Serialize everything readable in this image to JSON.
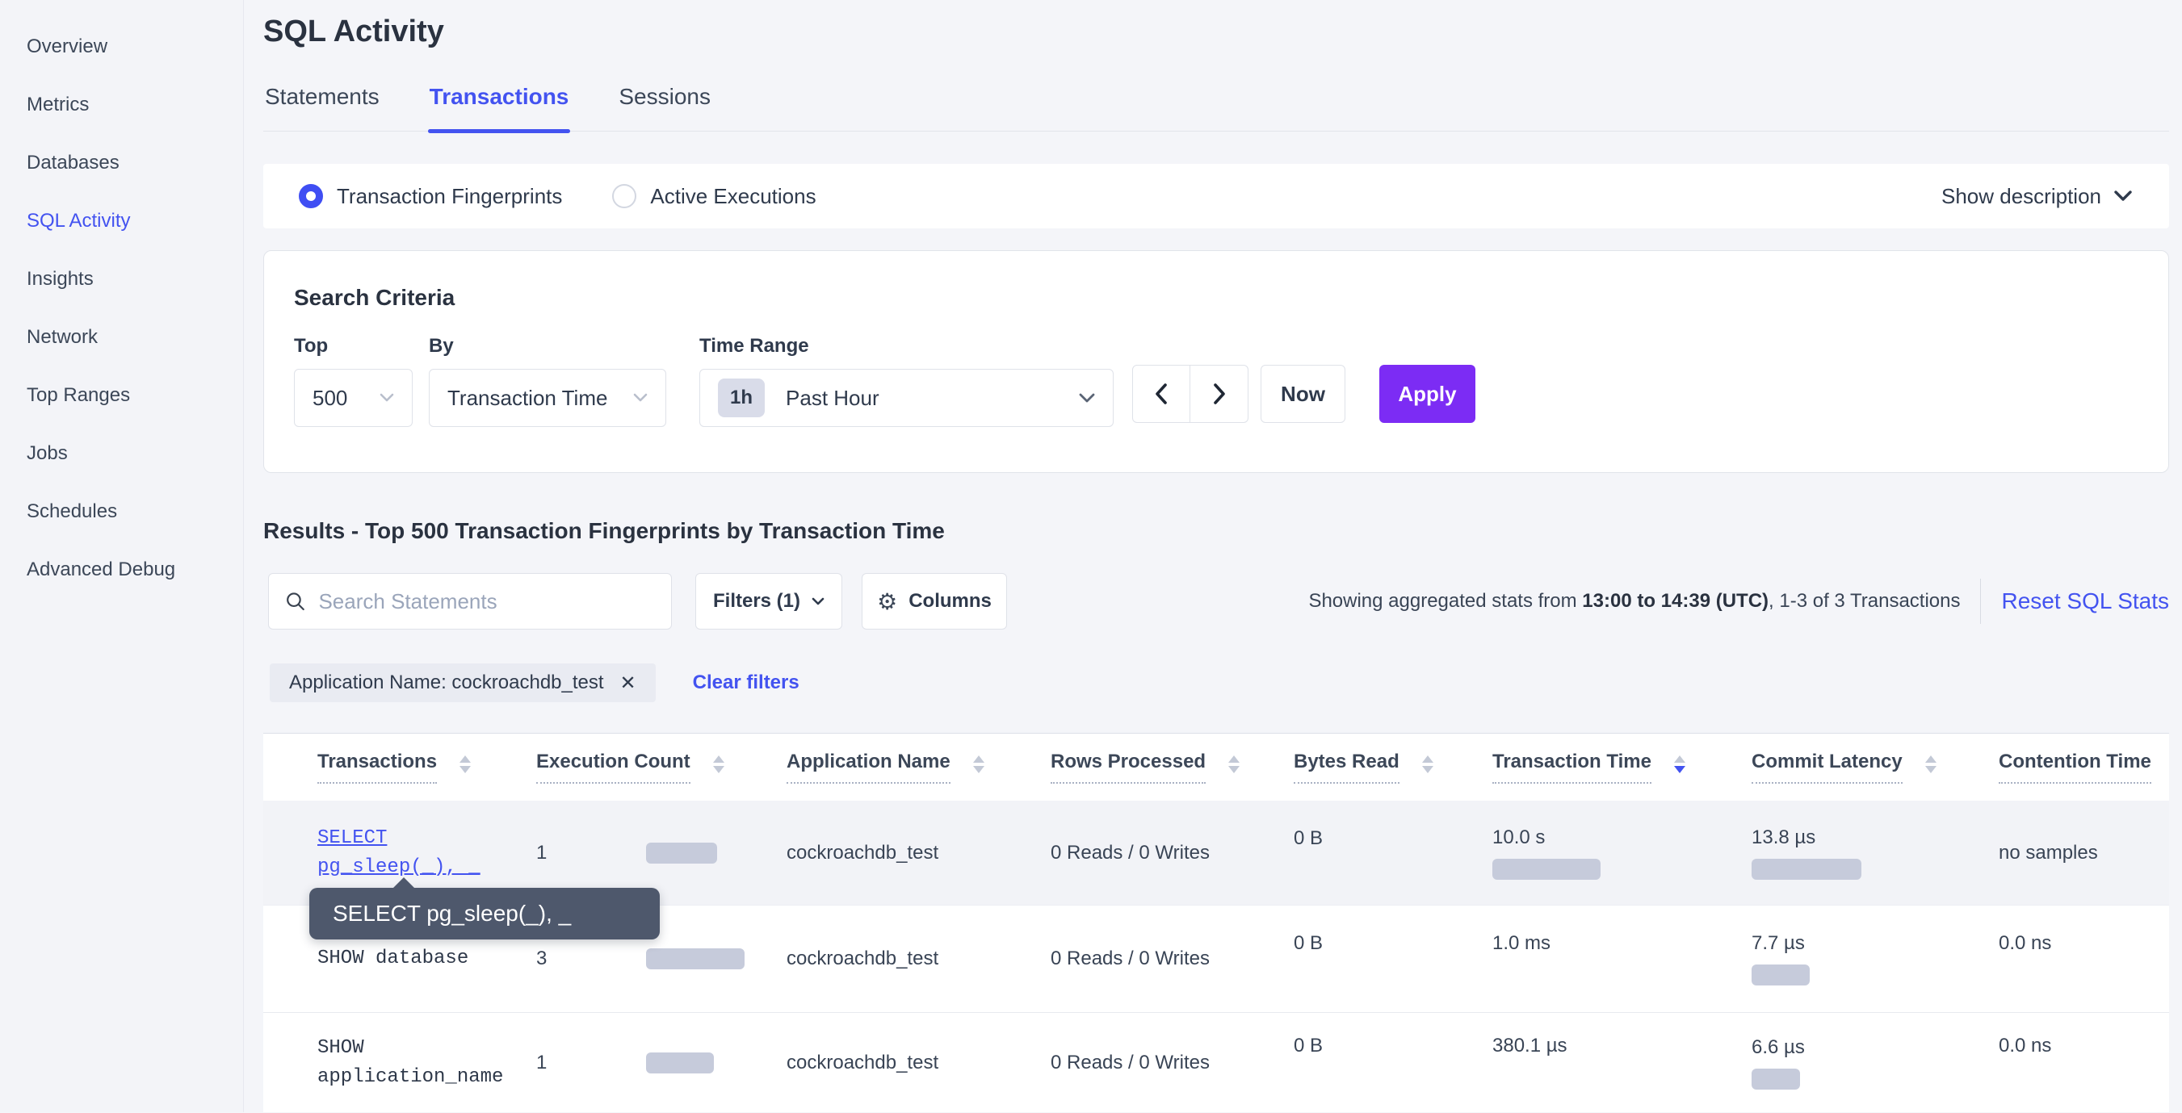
{
  "sidebar": {
    "items": [
      {
        "label": "Overview",
        "active": false
      },
      {
        "label": "Metrics",
        "active": false
      },
      {
        "label": "Databases",
        "active": false
      },
      {
        "label": "SQL Activity",
        "active": true
      },
      {
        "label": "Insights",
        "active": false
      },
      {
        "label": "Network",
        "active": false
      },
      {
        "label": "Top Ranges",
        "active": false
      },
      {
        "label": "Jobs",
        "active": false
      },
      {
        "label": "Schedules",
        "active": false
      },
      {
        "label": "Advanced Debug",
        "active": false
      }
    ]
  },
  "header": {
    "title": "SQL Activity",
    "tabs": [
      {
        "label": "Statements",
        "active": false
      },
      {
        "label": "Transactions",
        "active": true
      },
      {
        "label": "Sessions",
        "active": false
      }
    ]
  },
  "view_toggle": {
    "options": [
      {
        "label": "Transaction Fingerprints",
        "selected": true
      },
      {
        "label": "Active Executions",
        "selected": false
      }
    ],
    "show_description_label": "Show description"
  },
  "search_criteria": {
    "title": "Search Criteria",
    "top": {
      "label": "Top",
      "value": "500"
    },
    "by": {
      "label": "By",
      "value": "Transaction Time"
    },
    "time_range": {
      "label": "Time Range",
      "badge": "1h",
      "value": "Past Hour"
    },
    "now_label": "Now",
    "apply_label": "Apply"
  },
  "results": {
    "heading": "Results - Top 500 Transaction Fingerprints by Transaction Time",
    "search_placeholder": "Search Statements",
    "search_value": "",
    "filters_label": "Filters (1)",
    "columns_label": "Columns",
    "stats_prefix": "Showing aggregated stats from ",
    "stats_bold": "13:00 to 14:39 (UTC)",
    "stats_suffix": ", 1-3 of 3 Transactions",
    "reset_label": "Reset SQL Stats",
    "filter_chip": "Application Name: cockroachdb_test",
    "clear_filters_label": "Clear filters"
  },
  "tooltip": {
    "text": "SELECT pg_sleep(_), _"
  },
  "table": {
    "columns": [
      {
        "label": "Transactions",
        "sorted_desc": false
      },
      {
        "label": "Execution Count",
        "sorted_desc": false
      },
      {
        "label": "Application Name",
        "sorted_desc": false
      },
      {
        "label": "Rows Processed",
        "sorted_desc": false
      },
      {
        "label": "Bytes Read",
        "sorted_desc": false
      },
      {
        "label": "Transaction Time",
        "sorted_desc": true
      },
      {
        "label": "Commit Latency",
        "sorted_desc": false
      },
      {
        "label": "Contention Time",
        "sorted_desc": false
      }
    ],
    "rows": [
      {
        "query": "SELECT pg_sleep(_), _",
        "is_link": true,
        "execution_count": "1",
        "exec_bar": 88,
        "application_name": "cockroachdb_test",
        "rows_processed": "0 Reads / 0 Writes",
        "bytes_read": "0 B",
        "transaction_time": "10.0 s",
        "txn_bar": 134,
        "commit_latency": "13.8 µs",
        "commit_bar": 136,
        "contention_time": "no samples"
      },
      {
        "query": "SHOW database",
        "is_link": false,
        "execution_count": "3",
        "exec_bar": 122,
        "application_name": "cockroachdb_test",
        "rows_processed": "0 Reads / 0 Writes",
        "bytes_read": "0 B",
        "transaction_time": "1.0 ms",
        "txn_bar": 0,
        "commit_latency": "7.7 µs",
        "commit_bar": 72,
        "contention_time": "0.0 ns"
      },
      {
        "query": "SHOW application_name",
        "is_link": false,
        "execution_count": "1",
        "exec_bar": 84,
        "application_name": "cockroachdb_test",
        "rows_processed": "0 Reads / 0 Writes",
        "bytes_read": "0 B",
        "transaction_time": "380.1 µs",
        "txn_bar": 0,
        "commit_latency": "6.6 µs",
        "commit_bar": 60,
        "contention_time": "0.0 ns"
      }
    ]
  },
  "colors": {
    "accent_blue": "#4353f0",
    "accent_purple": "#7c2cf4",
    "bar_gray": "#c6cbdb",
    "tooltip_bg": "#4e586c"
  }
}
